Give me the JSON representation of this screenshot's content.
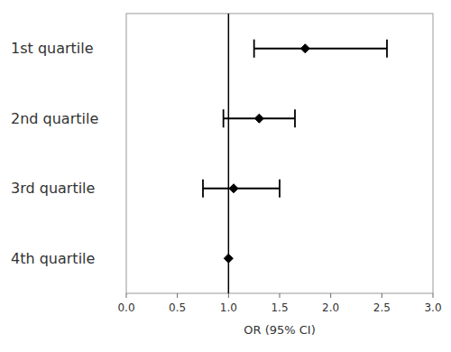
{
  "chart_data": {
    "type": "forest",
    "categories": [
      "1st quartile",
      "2nd quartile",
      "3rd quartile",
      "4th quartile"
    ],
    "values": [
      1.75,
      1.3,
      1.05,
      1.0
    ],
    "ci_lower": [
      1.25,
      0.95,
      0.75,
      null
    ],
    "ci_upper": [
      2.55,
      1.65,
      1.5,
      null
    ],
    "reference_line": 1.0,
    "xlim": [
      0.0,
      3.0
    ],
    "xticks": [
      {
        "value": 0.0,
        "label": "0.0"
      },
      0.5,
      {
        "value": 1.0,
        "label": "1.0"
      },
      1.5,
      {
        "value": 2.0,
        "label": "2.0"
      },
      2.5,
      {
        "value": 3.0,
        "label": "3.0"
      }
    ],
    "xlabel": "OR (95% CI)",
    "marker": "diamond",
    "color": "#000000",
    "grid": false
  }
}
